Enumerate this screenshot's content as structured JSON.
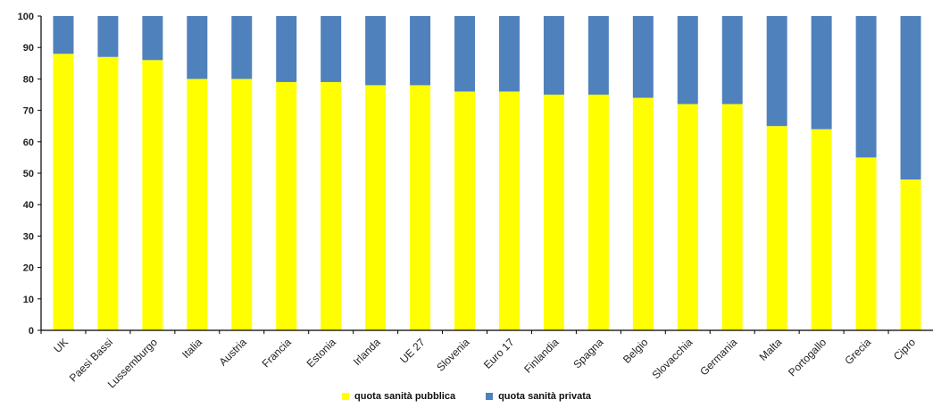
{
  "chart_data": {
    "type": "bar",
    "stacked": true,
    "categories": [
      "UK",
      "Paesi Bassi",
      "Lussemburgo",
      "Italia",
      "Austria",
      "Francia",
      "Estonia",
      "Irlanda",
      "UE 27",
      "Slovenia",
      "Euro 17",
      "Finlandia",
      "Spagna",
      "Belgio",
      "Slovacchia",
      "Germania",
      "Malta",
      "Portogallo",
      "Grecia",
      "Cipro"
    ],
    "series": [
      {
        "name": "quota sanità pubblica",
        "color": "#ffff00",
        "values": [
          88,
          87,
          86,
          80,
          80,
          79,
          79,
          78,
          78,
          76,
          76,
          75,
          75,
          74,
          72,
          72,
          65,
          64,
          55,
          48
        ]
      },
      {
        "name": "quota sanità privata",
        "color": "#4f81bd",
        "values": [
          12,
          13,
          14,
          20,
          20,
          21,
          21,
          22,
          22,
          24,
          24,
          25,
          25,
          26,
          28,
          28,
          35,
          36,
          45,
          52
        ]
      }
    ],
    "ylim": [
      0,
      100
    ],
    "yticks": [
      0,
      10,
      20,
      30,
      40,
      50,
      60,
      70,
      80,
      90,
      100
    ],
    "legend_position": "bottom",
    "grid": false
  }
}
